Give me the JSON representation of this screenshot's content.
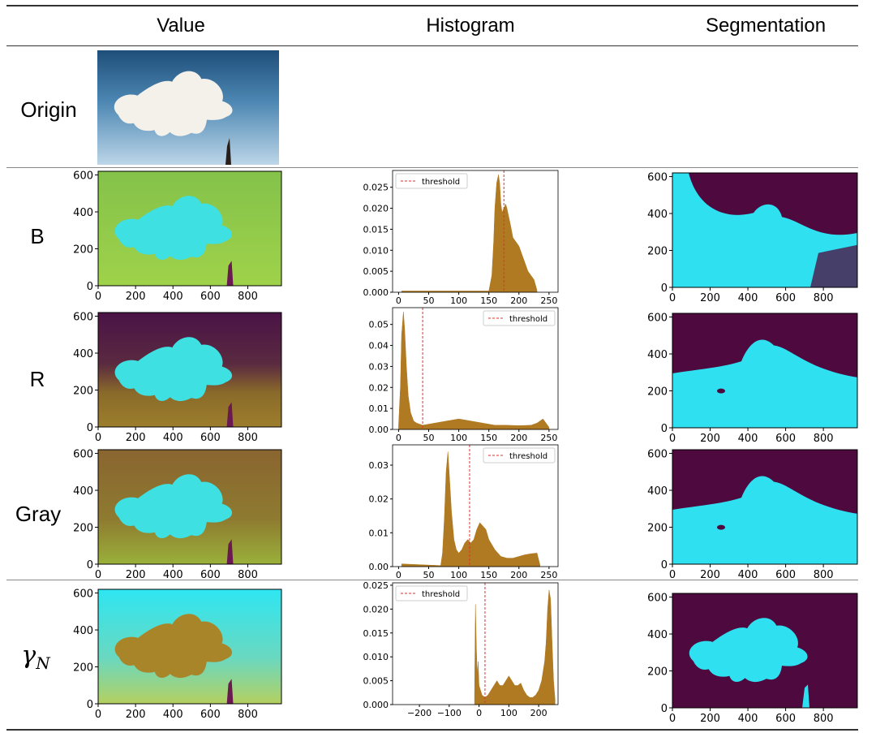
{
  "headers": {
    "value": "Value",
    "histogram": "Histogram",
    "segmentation": "Segmentation"
  },
  "rows": [
    {
      "label": "Origin"
    },
    {
      "label": "B"
    },
    {
      "label": "R"
    },
    {
      "label": "Gray"
    },
    {
      "label": "γN",
      "label_main": "γ",
      "label_sub": "N"
    }
  ],
  "image_axes": {
    "x_ticks": [
      "0",
      "200",
      "400",
      "600",
      "800"
    ],
    "y_ticks": [
      "0",
      "200",
      "400",
      "600"
    ],
    "x_range": [
      0,
      980
    ],
    "y_range": [
      620,
      0
    ]
  },
  "colors": {
    "hist_bar": "#b07a22",
    "threshold_line": "#e03030",
    "seg_dark": "#4e0a3e",
    "seg_light": "#2ee0f0",
    "sky_dark": "#1e4f7a",
    "sky_light": "#bcd6e8",
    "cloud": "#f4f1ea"
  },
  "chart_data": [
    {
      "type": "bar",
      "name": "B-histogram",
      "legend": "threshold",
      "legend_position": "top-left",
      "x_ticks": [
        "0",
        "50",
        "100",
        "150",
        "200",
        "250"
      ],
      "y_ticks": [
        "0.000",
        "0.005",
        "0.010",
        "0.015",
        "0.020",
        "0.025"
      ],
      "xlim": [
        -10,
        265
      ],
      "ylim": [
        0,
        0.029
      ],
      "threshold": 175,
      "x": [
        5,
        150,
        155,
        158,
        160,
        163,
        166,
        168,
        170,
        172,
        175,
        178,
        180,
        183,
        186,
        190,
        195,
        200,
        205,
        210,
        215,
        220,
        225,
        230
      ],
      "values": [
        0.0003,
        0.0003,
        0.004,
        0.012,
        0.02,
        0.026,
        0.028,
        0.026,
        0.021,
        0.019,
        0.02,
        0.021,
        0.02,
        0.018,
        0.016,
        0.013,
        0.012,
        0.011,
        0.009,
        0.007,
        0.005,
        0.004,
        0.003,
        0.0005
      ]
    },
    {
      "type": "bar",
      "name": "R-histogram",
      "legend": "threshold",
      "legend_position": "top-right",
      "x_ticks": [
        "0",
        "50",
        "100",
        "150",
        "200",
        "250"
      ],
      "y_ticks": [
        "0.00",
        "0.01",
        "0.02",
        "0.03",
        "0.04",
        "0.05"
      ],
      "xlim": [
        -10,
        265
      ],
      "ylim": [
        0,
        0.058
      ],
      "threshold": 40,
      "x": [
        0,
        3,
        5,
        8,
        10,
        13,
        16,
        20,
        25,
        30,
        40,
        60,
        80,
        100,
        120,
        140,
        160,
        180,
        200,
        220,
        230,
        235,
        240,
        245,
        250
      ],
      "values": [
        0.002,
        0.02,
        0.045,
        0.056,
        0.048,
        0.03,
        0.016,
        0.008,
        0.004,
        0.003,
        0.002,
        0.003,
        0.004,
        0.005,
        0.004,
        0.003,
        0.002,
        0.002,
        0.0018,
        0.002,
        0.003,
        0.004,
        0.005,
        0.003,
        0.001
      ]
    },
    {
      "type": "bar",
      "name": "Gray-histogram",
      "legend": "threshold",
      "legend_position": "top-right",
      "x_ticks": [
        "0",
        "50",
        "100",
        "150",
        "200",
        "250"
      ],
      "y_ticks": [
        "0.00",
        "0.01",
        "0.02",
        "0.03"
      ],
      "xlim": [
        -10,
        265
      ],
      "ylim": [
        0,
        0.036
      ],
      "threshold": 118,
      "x": [
        5,
        70,
        73,
        76,
        79,
        82,
        85,
        88,
        92,
        96,
        100,
        105,
        110,
        115,
        120,
        125,
        130,
        135,
        140,
        145,
        150,
        160,
        170,
        180,
        190,
        200,
        210,
        220,
        230,
        235
      ],
      "values": [
        0.0008,
        0.0003,
        0.004,
        0.014,
        0.028,
        0.034,
        0.025,
        0.016,
        0.008,
        0.005,
        0.004,
        0.005,
        0.007,
        0.008,
        0.007,
        0.008,
        0.011,
        0.013,
        0.012,
        0.011,
        0.008,
        0.005,
        0.003,
        0.0025,
        0.0025,
        0.003,
        0.0035,
        0.0038,
        0.004,
        0.0005
      ]
    },
    {
      "type": "bar",
      "name": "gammaN-histogram",
      "legend": "threshold",
      "legend_position": "top-left",
      "x_ticks": [
        "−200",
        "−100",
        "0",
        "100",
        "200"
      ],
      "y_ticks": [
        "0.000",
        "0.005",
        "0.010",
        "0.015",
        "0.020",
        "0.025"
      ],
      "xlim": [
        -290,
        265
      ],
      "ylim": [
        0,
        0.0255
      ],
      "threshold": 20,
      "x": [
        -15,
        -12,
        -9,
        -6,
        -3,
        0,
        5,
        10,
        20,
        30,
        40,
        50,
        60,
        70,
        80,
        90,
        100,
        110,
        120,
        130,
        140,
        150,
        160,
        170,
        180,
        190,
        200,
        210,
        220,
        225,
        230,
        235,
        240,
        245,
        250,
        255
      ],
      "values": [
        0.002,
        0.021,
        0.012,
        0.006,
        0.009,
        0.004,
        0.003,
        0.002,
        0.0015,
        0.002,
        0.003,
        0.004,
        0.005,
        0.004,
        0.004,
        0.005,
        0.006,
        0.005,
        0.004,
        0.004,
        0.0045,
        0.003,
        0.002,
        0.0015,
        0.0015,
        0.002,
        0.003,
        0.005,
        0.009,
        0.013,
        0.02,
        0.024,
        0.022,
        0.013,
        0.005,
        0.001
      ]
    }
  ]
}
